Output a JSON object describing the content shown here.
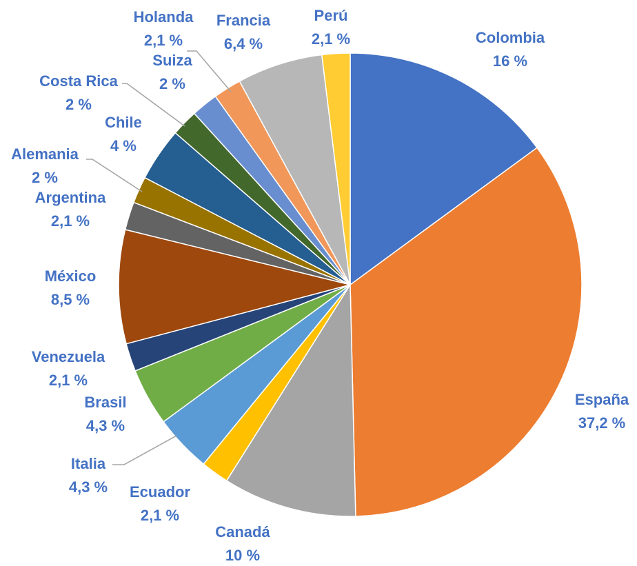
{
  "chart_data": {
    "type": "pie",
    "title": "",
    "slices": [
      {
        "label": "Colombia",
        "value": 16,
        "value_label": "16 %",
        "color": "#4472c4"
      },
      {
        "label": "España",
        "value": 37.2,
        "value_label": "37,2 %",
        "color": "#ed7d31"
      },
      {
        "label": "Canadá",
        "value": 10,
        "value_label": "10 %",
        "color": "#a5a5a5"
      },
      {
        "label": "Ecuador",
        "value": 2.1,
        "value_label": "2,1 %",
        "color": "#ffc000"
      },
      {
        "label": "Italia",
        "value": 4.3,
        "value_label": "4,3 %",
        "color": "#5b9bd5"
      },
      {
        "label": "Brasil",
        "value": 4.3,
        "value_label": "4,3 %",
        "color": "#70ad47"
      },
      {
        "label": "Venezuela",
        "value": 2.1,
        "value_label": "2,1 %",
        "color": "#264478"
      },
      {
        "label": "México",
        "value": 8.5,
        "value_label": "8,5 %",
        "color": "#9e480e"
      },
      {
        "label": "Argentina",
        "value": 2.1,
        "value_label": "2,1 %",
        "color": "#636363"
      },
      {
        "label": "Alemania",
        "value": 2,
        "value_label": "2 %",
        "color": "#997300"
      },
      {
        "label": "Chile",
        "value": 4,
        "value_label": "4 %",
        "color": "#255e91"
      },
      {
        "label": "Costa Rica",
        "value": 2,
        "value_label": "2 %",
        "color": "#43682b"
      },
      {
        "label": "Suiza",
        "value": 2,
        "value_label": "2 %",
        "color": "#698ed0"
      },
      {
        "label": "Holanda",
        "value": 2.1,
        "value_label": "2,1 %",
        "color": "#f1975a"
      },
      {
        "label": "Francia",
        "value": 6.4,
        "value_label": "6,4 %",
        "color": "#b7b7b7"
      },
      {
        "label": "Perú",
        "value": 2.1,
        "value_label": "2,1 %",
        "color": "#ffcd33"
      }
    ],
    "start_angle_deg": 0,
    "direction": "clockwise",
    "label_color": "#4472c4",
    "leader_line_color": "#a6a6a6"
  }
}
